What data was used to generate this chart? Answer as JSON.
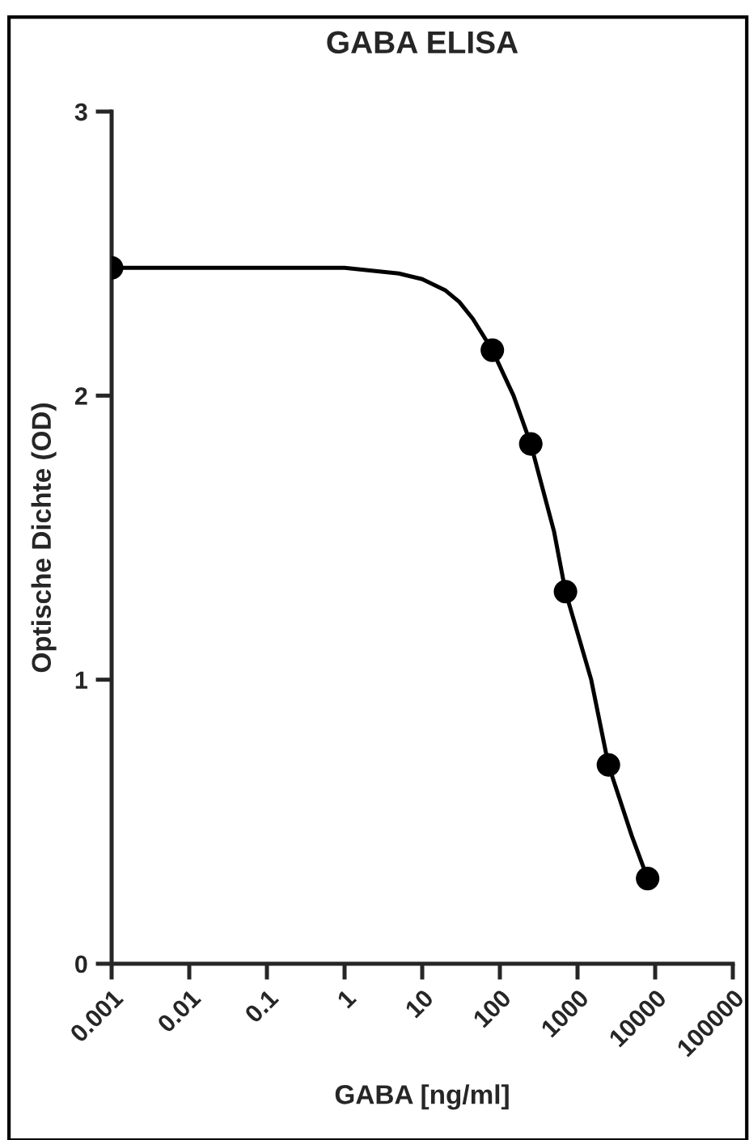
{
  "chart_data": {
    "type": "scatter",
    "title": "GABA ELISA",
    "xlabel": "GABA [ng/ml]",
    "ylabel": "Optische Dichte (OD)",
    "log": "x",
    "xlim": [
      0.001,
      100000
    ],
    "xticks": [
      0.001,
      0.01,
      0.1,
      1,
      10,
      100,
      1000,
      10000,
      100000
    ],
    "ylim": [
      0,
      3
    ],
    "yticks": [
      0,
      1,
      2,
      3
    ],
    "grid": false,
    "legend": false,
    "series": [
      {
        "type": "scatter",
        "color": "#000000",
        "marker": "circle",
        "x": [
          0.001,
          80,
          250,
          700,
          2500,
          8000
        ],
        "values": [
          2.45,
          2.16,
          1.83,
          1.31,
          0.7,
          0.3
        ]
      },
      {
        "type": "line",
        "color": "#000000",
        "marker": "none",
        "line_style": "solid",
        "x": [
          0.001,
          0.1,
          1,
          5,
          10,
          20,
          30,
          45,
          80,
          150,
          250,
          500,
          700,
          1500,
          2500,
          5000,
          8000
        ],
        "values": [
          2.45,
          2.45,
          2.45,
          2.43,
          2.41,
          2.37,
          2.33,
          2.27,
          2.16,
          2.0,
          1.83,
          1.52,
          1.31,
          1.0,
          0.7,
          0.45,
          0.3
        ]
      }
    ]
  }
}
